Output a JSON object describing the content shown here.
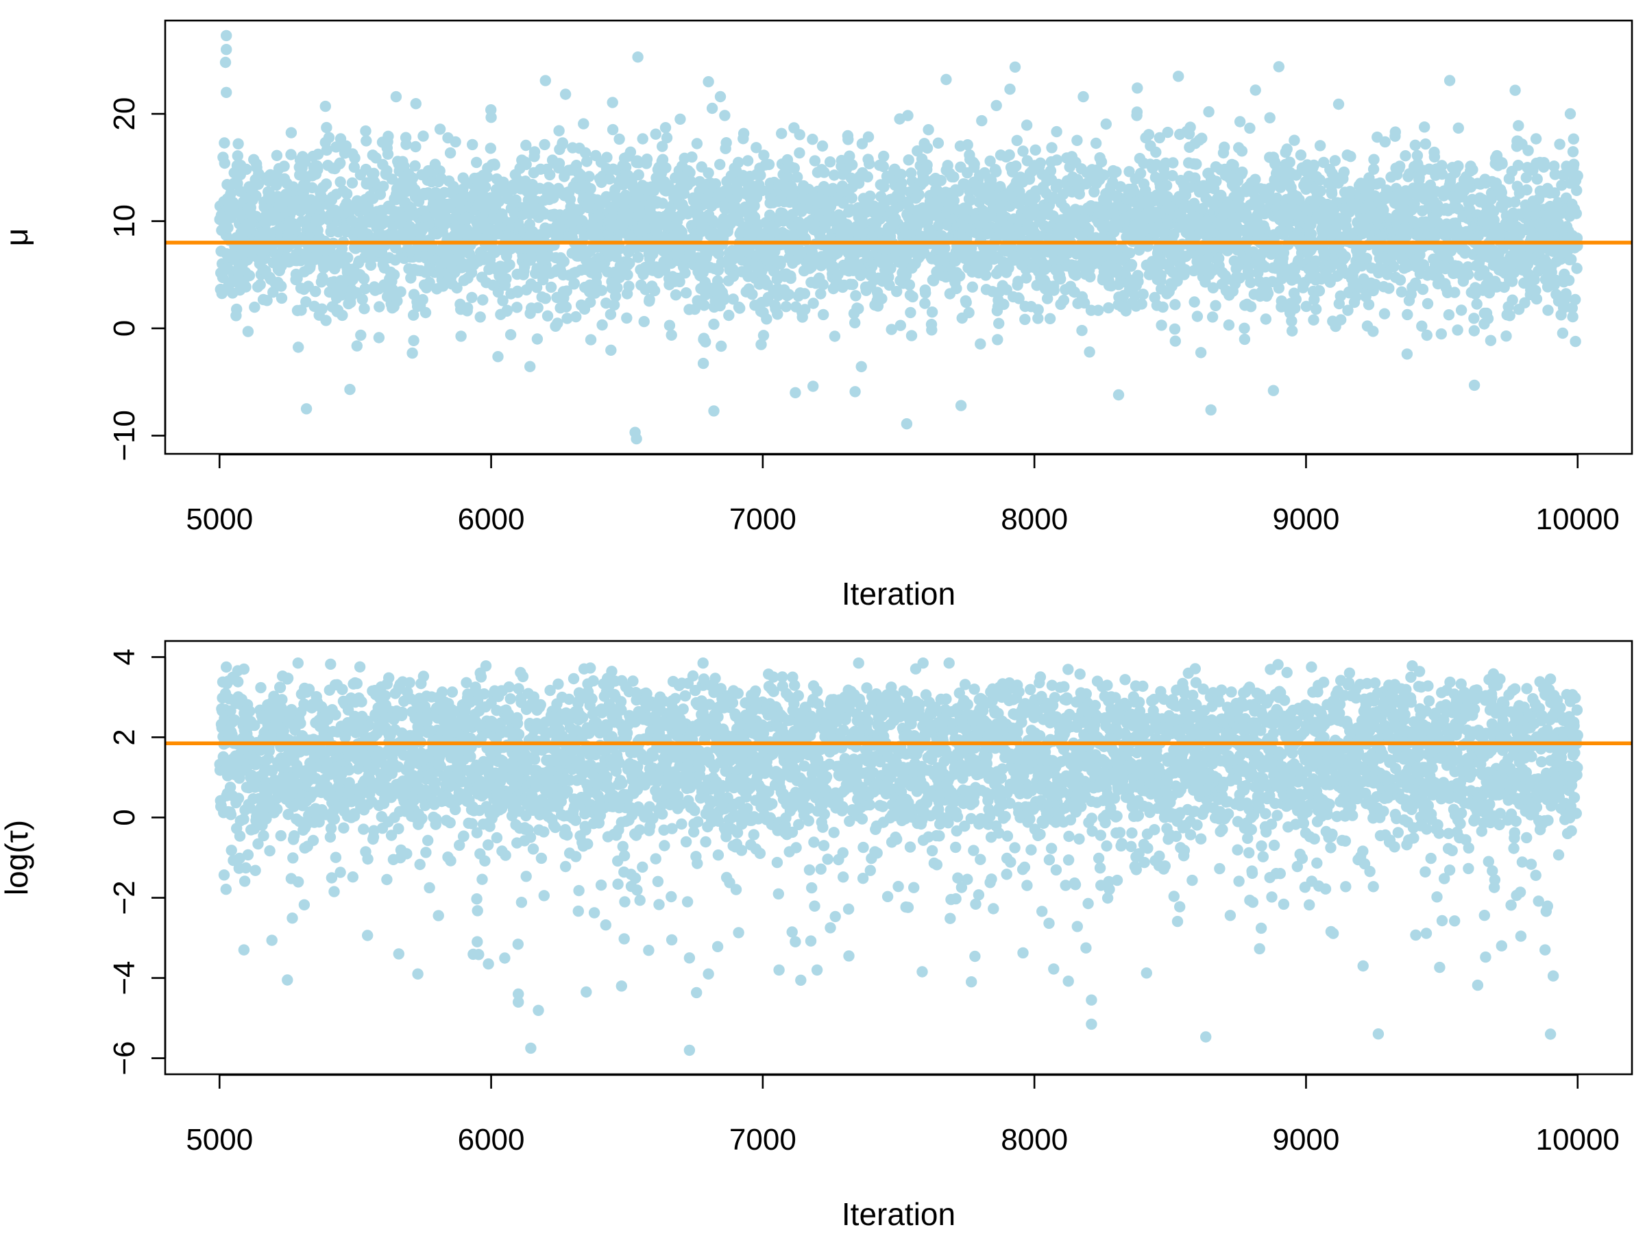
{
  "figure": {
    "background": "#ffffff",
    "marker_color": "#add8e6",
    "reference_line_color": "#ff8c00",
    "frame_color": "#000000"
  },
  "chart_data": [
    {
      "type": "scatter",
      "panel": "top",
      "title": "",
      "xlabel": "Iteration",
      "ylabel": "μ",
      "xlim": [
        4800,
        10200
      ],
      "ylim": [
        -11.7,
        28.7
      ],
      "x_ticks": [
        5000,
        6000,
        7000,
        8000,
        9000,
        10000
      ],
      "x_tick_labels": [
        "5000",
        "6000",
        "7000",
        "8000",
        "9000",
        "10000"
      ],
      "y_ticks": [
        -10,
        0,
        10,
        20
      ],
      "y_tick_labels": [
        "−10",
        "0",
        "10",
        "20"
      ],
      "grid": false,
      "legend": "none",
      "reference_line": {
        "orientation": "horizontal",
        "y": 8
      },
      "series": [
        {
          "x_range": [
            5001,
            10000
          ],
          "x_step": 1,
          "n_points": 5000,
          "center": 8,
          "typical_range": [
            0,
            18
          ],
          "observed_min": -10.3,
          "observed_max": 27.3
        }
      ],
      "notable_points": [
        {
          "x": 5025,
          "y": 27.3
        },
        {
          "x": 5025,
          "y": 26
        },
        {
          "x": 5022,
          "y": 24.8
        },
        {
          "x": 5025,
          "y": 22
        },
        {
          "x": 6540,
          "y": 25.3
        },
        {
          "x": 8900,
          "y": 24.4
        },
        {
          "x": 8530,
          "y": 23.5
        },
        {
          "x": 7675,
          "y": 23.2
        },
        {
          "x": 6200,
          "y": 23.1
        },
        {
          "x": 6800,
          "y": 23
        },
        {
          "x": 9770,
          "y": 22.2
        },
        {
          "x": 7910,
          "y": 22.3
        },
        {
          "x": 5650,
          "y": 21.6
        },
        {
          "x": 8180,
          "y": 21.6
        },
        {
          "x": 9120,
          "y": 20.9
        },
        {
          "x": 5390,
          "y": 20.7
        },
        {
          "x": 5320,
          "y": -7.5
        },
        {
          "x": 5480,
          "y": -5.7
        },
        {
          "x": 6530,
          "y": -9.7
        },
        {
          "x": 6535,
          "y": -10.3
        },
        {
          "x": 6820,
          "y": -7.7
        },
        {
          "x": 7530,
          "y": -8.9
        },
        {
          "x": 7730,
          "y": -7.2
        },
        {
          "x": 8310,
          "y": -6.2
        },
        {
          "x": 8650,
          "y": -7.6
        },
        {
          "x": 9620,
          "y": -5.3
        },
        {
          "x": 8880,
          "y": -5.8
        },
        {
          "x": 7120,
          "y": -6
        },
        {
          "x": 7340,
          "y": -5.9
        },
        {
          "x": 7185,
          "y": -5.4
        }
      ]
    },
    {
      "type": "scatter",
      "panel": "bottom",
      "title": "",
      "xlabel": "Iteration",
      "ylabel": "log(τ)",
      "xlim": [
        4800,
        10200
      ],
      "ylim": [
        -6.4,
        4.4
      ],
      "x_ticks": [
        5000,
        6000,
        7000,
        8000,
        9000,
        10000
      ],
      "x_tick_labels": [
        "5000",
        "6000",
        "7000",
        "8000",
        "9000",
        "10000"
      ],
      "y_ticks": [
        -6,
        -4,
        -2,
        0,
        2,
        4
      ],
      "y_tick_labels": [
        "−6",
        "−4",
        "−2",
        "0",
        "2",
        "4"
      ],
      "grid": false,
      "legend": "none",
      "reference_line": {
        "orientation": "horizontal",
        "y": 1.85
      },
      "series": [
        {
          "x_range": [
            5001,
            10000
          ],
          "x_step": 1,
          "n_points": 5000,
          "center": 1.9,
          "typical_range": [
            0,
            3.2
          ],
          "observed_min": -5.8,
          "observed_max": 3.85
        }
      ],
      "notable_points": [
        {
          "x": 6730,
          "y": -5.8
        },
        {
          "x": 9900,
          "y": -5.4
        },
        {
          "x": 8210,
          "y": -5.15
        },
        {
          "x": 8210,
          "y": -4.55
        },
        {
          "x": 6100,
          "y": -4.6
        },
        {
          "x": 6100,
          "y": -4.4
        },
        {
          "x": 6350,
          "y": -4.35
        },
        {
          "x": 6480,
          "y": -4.2
        },
        {
          "x": 5250,
          "y": -4.05
        },
        {
          "x": 9910,
          "y": -3.95
        },
        {
          "x": 6800,
          "y": -3.9
        },
        {
          "x": 5730,
          "y": -3.9
        },
        {
          "x": 7060,
          "y": -3.8
        },
        {
          "x": 7200,
          "y": -3.8
        },
        {
          "x": 9210,
          "y": -3.7
        },
        {
          "x": 5990,
          "y": -3.65
        },
        {
          "x": 6730,
          "y": -3.5
        },
        {
          "x": 5660,
          "y": -3.4
        },
        {
          "x": 5090,
          "y": -3.3
        },
        {
          "x": 9720,
          "y": -3.2
        },
        {
          "x": 8190,
          "y": -3.25
        },
        {
          "x": 9880,
          "y": -3.3
        },
        {
          "x": 6780,
          "y": 3.85
        },
        {
          "x": 9020,
          "y": 3.75
        },
        {
          "x": 5025,
          "y": 3.75
        },
        {
          "x": 5090,
          "y": 3.7
        },
        {
          "x": 9160,
          "y": 3.6
        },
        {
          "x": 5960,
          "y": 3.6
        },
        {
          "x": 7110,
          "y": 3.5
        },
        {
          "x": 9900,
          "y": 3.45
        }
      ]
    }
  ]
}
